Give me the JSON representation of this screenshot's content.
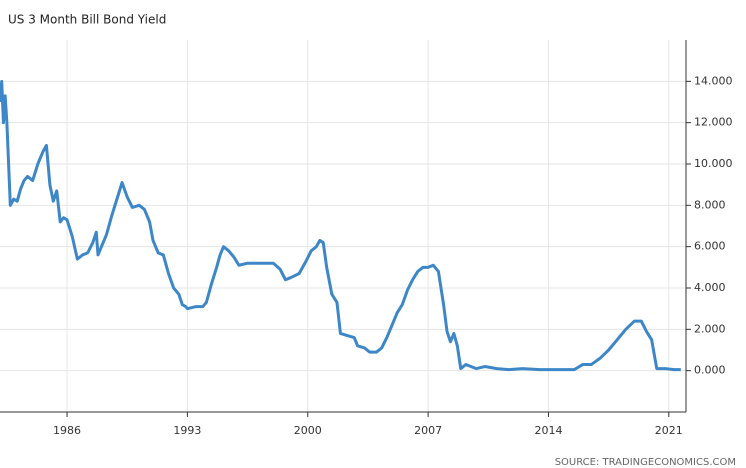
{
  "chart_data": {
    "type": "line",
    "title": "US 3 Month Bill Bond Yield",
    "source": "SOURCE: TRADINGECONOMICS.COM",
    "color": "#3d87c8",
    "grid": true,
    "xlim": [
      1982.1,
      2022.0
    ],
    "xticks": [
      1986,
      1993,
      2000,
      2007,
      2014,
      2021
    ],
    "ylim": [
      -2,
      16
    ],
    "yticks": [
      {
        "value": 0,
        "label": "0.000"
      },
      {
        "value": 2,
        "label": "2.000"
      },
      {
        "value": 4,
        "label": "4.000"
      },
      {
        "value": 6,
        "label": "6.000"
      },
      {
        "value": 8,
        "label": "8.000"
      },
      {
        "value": 10,
        "label": "10.000"
      },
      {
        "value": 12,
        "label": "12.000"
      },
      {
        "value": 14,
        "label": "14.000"
      }
    ],
    "x": [
      1982.1,
      1982.2,
      1982.3,
      1982.4,
      1982.5,
      1982.7,
      1982.9,
      1983.1,
      1983.3,
      1983.5,
      1983.7,
      1984.0,
      1984.3,
      1984.6,
      1984.8,
      1985.0,
      1985.2,
      1985.4,
      1985.6,
      1985.8,
      1986.0,
      1986.3,
      1986.6,
      1986.9,
      1987.2,
      1987.5,
      1987.7,
      1987.8,
      1988.0,
      1988.3,
      1988.6,
      1988.9,
      1989.2,
      1989.5,
      1989.8,
      1990.2,
      1990.5,
      1990.8,
      1991.0,
      1991.3,
      1991.6,
      1991.9,
      1992.2,
      1992.5,
      1992.7,
      1992.9,
      1993.0,
      1993.5,
      1993.9,
      1994.1,
      1994.4,
      1994.7,
      1994.9,
      1995.1,
      1995.4,
      1995.7,
      1996.0,
      1996.5,
      1997.0,
      1997.5,
      1998.0,
      1998.4,
      1998.7,
      1999.0,
      1999.5,
      1999.9,
      2000.2,
      2000.5,
      2000.7,
      2000.9,
      2001.1,
      2001.4,
      2001.7,
      2001.9,
      2002.3,
      2002.7,
      2002.9,
      2003.3,
      2003.6,
      2004.0,
      2004.3,
      2004.6,
      2004.9,
      2005.2,
      2005.5,
      2005.8,
      2006.1,
      2006.4,
      2006.7,
      2007.0,
      2007.3,
      2007.6,
      2007.9,
      2008.1,
      2008.3,
      2008.5,
      2008.7,
      2008.9,
      2009.2,
      2009.8,
      2010.3,
      2011.0,
      2011.7,
      2012.5,
      2013.5,
      2014.5,
      2015.5,
      2016.0,
      2016.5,
      2017.0,
      2017.5,
      2018.0,
      2018.5,
      2019.0,
      2019.4,
      2019.7,
      2020.0,
      2020.3,
      2020.8,
      2021.3,
      2021.6,
      2021.7
    ],
    "values": [
      13.0,
      14.0,
      12.0,
      13.3,
      12.0,
      8.0,
      8.3,
      8.2,
      8.8,
      9.2,
      9.4,
      9.2,
      10.0,
      10.6,
      10.9,
      9.0,
      8.2,
      8.7,
      7.2,
      7.4,
      7.3,
      6.5,
      5.4,
      5.6,
      5.7,
      6.2,
      6.7,
      5.6,
      6.0,
      6.6,
      7.5,
      8.3,
      9.1,
      8.4,
      7.9,
      8.0,
      7.8,
      7.2,
      6.3,
      5.7,
      5.6,
      4.7,
      4.0,
      3.7,
      3.2,
      3.1,
      3.0,
      3.1,
      3.1,
      3.3,
      4.2,
      5.0,
      5.6,
      6.0,
      5.8,
      5.5,
      5.1,
      5.2,
      5.2,
      5.2,
      5.2,
      4.9,
      4.4,
      4.5,
      4.7,
      5.3,
      5.8,
      6.0,
      6.3,
      6.2,
      5.0,
      3.7,
      3.3,
      1.8,
      1.7,
      1.6,
      1.2,
      1.1,
      0.9,
      0.9,
      1.1,
      1.6,
      2.2,
      2.8,
      3.2,
      3.9,
      4.4,
      4.8,
      5.0,
      5.0,
      5.1,
      4.8,
      3.2,
      1.9,
      1.4,
      1.8,
      1.2,
      0.1,
      0.3,
      0.1,
      0.2,
      0.1,
      0.05,
      0.1,
      0.05,
      0.05,
      0.05,
      0.3,
      0.3,
      0.6,
      1.0,
      1.5,
      2.0,
      2.4,
      2.4,
      1.9,
      1.5,
      0.1,
      0.1,
      0.05,
      0.05,
      0.05
    ]
  }
}
